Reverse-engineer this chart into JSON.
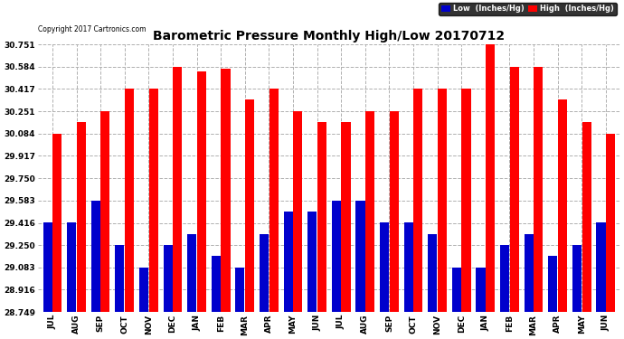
{
  "title": "Barometric Pressure Monthly High/Low 20170712",
  "copyright": "Copyright 2017 Cartronics.com",
  "months": [
    "JUL",
    "AUG",
    "SEP",
    "OCT",
    "NOV",
    "DEC",
    "JAN",
    "FEB",
    "MAR",
    "APR",
    "MAY",
    "JUN",
    "JUL",
    "AUG",
    "SEP",
    "OCT",
    "NOV",
    "DEC",
    "JAN",
    "FEB",
    "MAR",
    "APR",
    "MAY",
    "JUN"
  ],
  "high": [
    30.08,
    30.17,
    30.25,
    30.42,
    30.42,
    30.58,
    30.55,
    30.57,
    30.34,
    30.42,
    30.25,
    30.17,
    30.17,
    30.25,
    30.25,
    30.42,
    30.42,
    30.42,
    30.75,
    30.58,
    30.58,
    30.34,
    30.17,
    30.08
  ],
  "low": [
    29.42,
    29.42,
    29.58,
    29.25,
    29.08,
    29.25,
    29.33,
    29.17,
    29.08,
    29.33,
    29.5,
    29.5,
    29.58,
    29.58,
    29.42,
    29.42,
    29.33,
    29.08,
    29.08,
    29.25,
    29.33,
    29.17,
    29.25,
    29.42
  ],
  "high_color": "#ff0000",
  "low_color": "#0000cc",
  "bg_color": "#ffffff",
  "grid_color": "#b0b0b0",
  "yticks": [
    28.749,
    28.916,
    29.083,
    29.25,
    29.416,
    29.583,
    29.75,
    29.917,
    30.084,
    30.251,
    30.417,
    30.584,
    30.751
  ],
  "ylim_min": 28.749,
  "ylim_max": 30.751,
  "title_fontsize": 10,
  "legend_low_label": "Low  (Inches/Hg)",
  "legend_high_label": "High  (Inches/Hg)"
}
